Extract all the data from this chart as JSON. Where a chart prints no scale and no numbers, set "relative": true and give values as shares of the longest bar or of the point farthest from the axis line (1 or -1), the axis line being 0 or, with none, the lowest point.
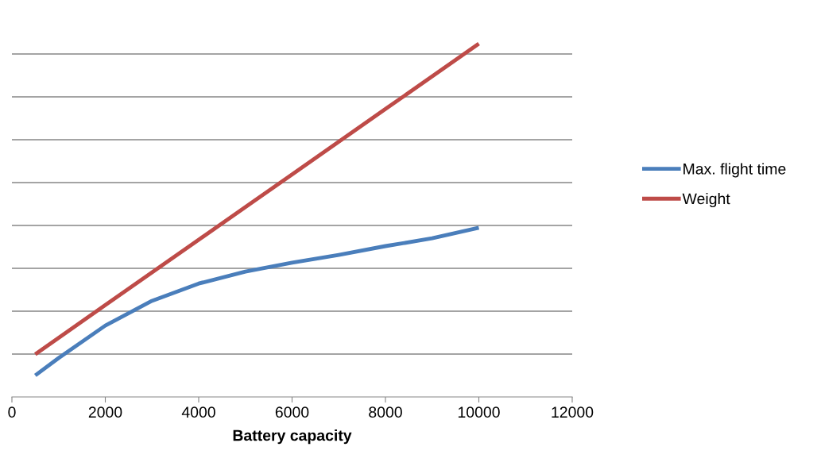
{
  "chart_data": {
    "type": "line",
    "xlabel": "Battery capacity",
    "relative": true,
    "xlim": [
      0,
      12000
    ],
    "xticks": [
      0,
      2000,
      4000,
      6000,
      8000,
      10000,
      12000
    ],
    "series": [
      {
        "name": "Max. flight time",
        "color": "#4a7ebb",
        "x": [
          500,
          1000,
          2000,
          3000,
          4000,
          5000,
          6000,
          7000,
          8000,
          9000,
          10000
        ],
        "values": [
          0.061,
          0.11,
          0.202,
          0.272,
          0.321,
          0.355,
          0.38,
          0.402,
          0.427,
          0.449,
          0.479
        ]
      },
      {
        "name": "Weight",
        "color": "#be4b48",
        "x": [
          500,
          2000,
          4000,
          6000,
          8000,
          10000
        ],
        "values": [
          0.121,
          0.26,
          0.445,
          0.63,
          0.815,
          1.0
        ]
      }
    ],
    "grid": "y",
    "legend": "right",
    "marker": "none",
    "line_style": "solid"
  }
}
